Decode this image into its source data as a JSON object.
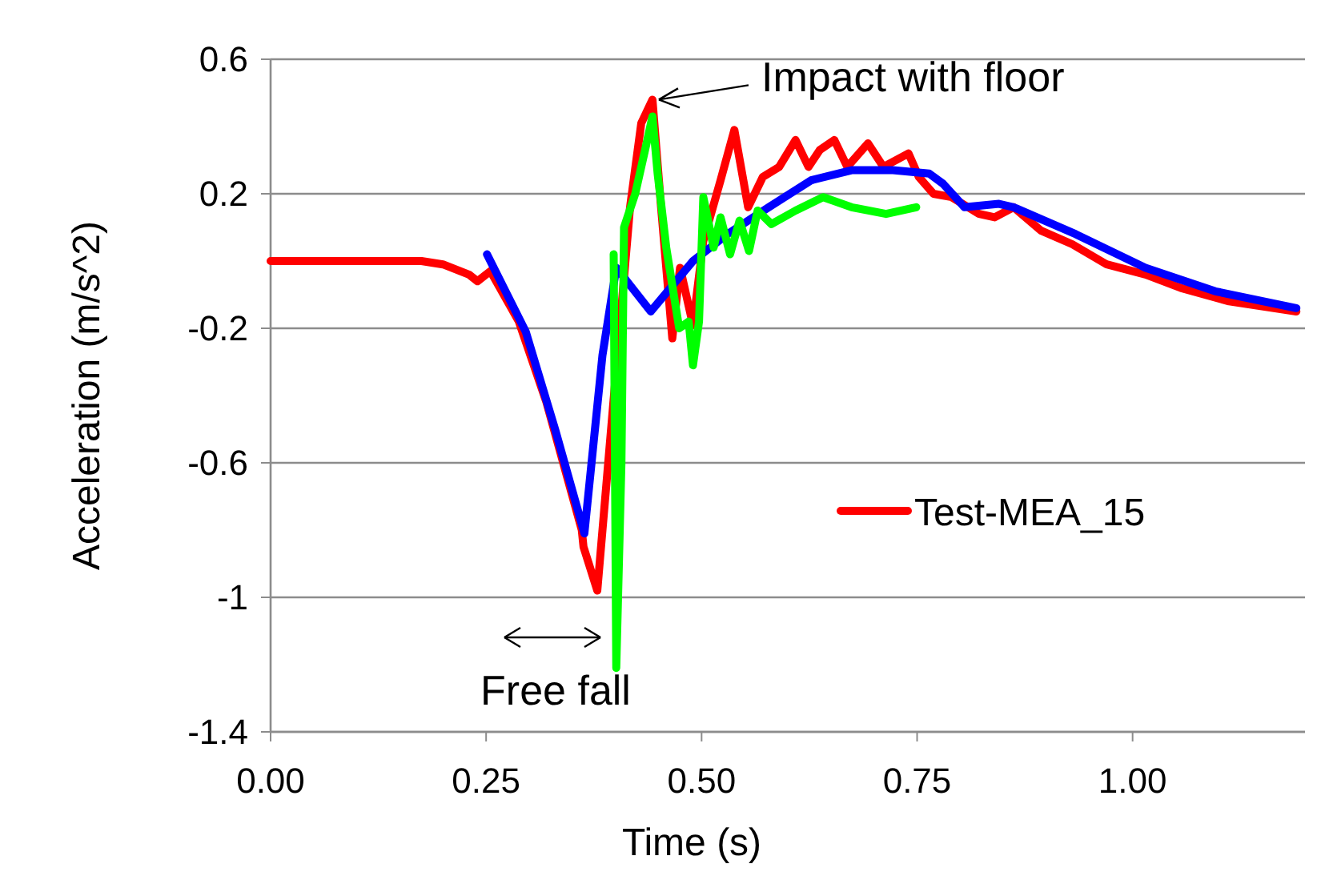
{
  "chart_data": {
    "type": "line",
    "xlabel": "Time (s)",
    "ylabel": "Acceleration (m/s^2)",
    "xlim": [
      0,
      1.2
    ],
    "xticks": [
      {
        "value": 0,
        "label": "0.00"
      },
      {
        "value": 0.25,
        "label": "0.25"
      },
      {
        "value": 0.5,
        "label": "0.50"
      },
      {
        "value": 0.75,
        "label": "0.75"
      },
      {
        "value": 1,
        "label": "1.00"
      }
    ],
    "ylim": [
      -1.4,
      0.6
    ],
    "yticks": [
      0.6,
      0.2,
      -0.2,
      -0.6,
      -1,
      -1.4
    ],
    "grid": "y",
    "legend": "right",
    "line_style": "solid",
    "marker": "none",
    "annotations": [
      {
        "text": "Impact with floor",
        "x": 0.443,
        "y": 0.48
      },
      "Free fall"
    ],
    "series": [
      {
        "name": "Test-MEA_15",
        "color": "#ff0000",
        "x": [
          0,
          0.05,
          0.1,
          0.15,
          0.175,
          0.2,
          0.23,
          0.24,
          0.255,
          0.288,
          0.32,
          0.361,
          0.363,
          0.379,
          0.392,
          0.417,
          0.43,
          0.443,
          0.453,
          0.466,
          0.475,
          0.49,
          0.502,
          0.522,
          0.538,
          0.554,
          0.571,
          0.59,
          0.609,
          0.624,
          0.637,
          0.654,
          0.669,
          0.693,
          0.711,
          0.74,
          0.752,
          0.769,
          0.79,
          0.822,
          0.84,
          0.862,
          0.894,
          0.93,
          0.97,
          1.015,
          1.056,
          1.112,
          1.19
        ],
        "values": [
          0,
          0,
          0,
          0,
          0,
          -0.01,
          -0.04,
          -0.06,
          -0.03,
          -0.18,
          -0.42,
          -0.8,
          -0.85,
          -0.98,
          -0.59,
          0.16,
          0.41,
          0.48,
          0.16,
          -0.23,
          -0.02,
          -0.19,
          0.06,
          0.24,
          0.39,
          0.16,
          0.25,
          0.28,
          0.36,
          0.28,
          0.33,
          0.36,
          0.28,
          0.35,
          0.28,
          0.32,
          0.25,
          0.2,
          0.19,
          0.14,
          0.13,
          0.16,
          0.09,
          0.05,
          -0.01,
          -0.04,
          -0.08,
          -0.12,
          -0.15
        ]
      },
      {
        "color": "#0000ff",
        "x": [
          0.251,
          0.296,
          0.33,
          0.364,
          0.385,
          0.401,
          0.441,
          0.49,
          0.53,
          0.578,
          0.627,
          0.674,
          0.722,
          0.764,
          0.78,
          0.805,
          0.845,
          0.862,
          0.934,
          1.015,
          1.096,
          1.19
        ],
        "values": [
          0.02,
          -0.21,
          -0.5,
          -0.81,
          -0.28,
          -0.02,
          -0.15,
          0,
          0.08,
          0.16,
          0.24,
          0.27,
          0.27,
          0.26,
          0.23,
          0.16,
          0.17,
          0.16,
          0.08,
          -0.02,
          -0.09,
          -0.14
        ]
      },
      {
        "color": "#00ff00",
        "x": [
          0.398,
          0.401,
          0.407,
          0.41,
          0.423,
          0.437,
          0.443,
          0.449,
          0.459,
          0.474,
          0.485,
          0.49,
          0.497,
          0.502,
          0.514,
          0.522,
          0.533,
          0.544,
          0.555,
          0.565,
          0.581,
          0.609,
          0.641,
          0.674,
          0.714,
          0.749
        ],
        "values": [
          0.02,
          -1.21,
          -0.6,
          0.1,
          0.2,
          0.36,
          0.43,
          0.26,
          0.04,
          -0.2,
          -0.18,
          -0.31,
          -0.18,
          0.19,
          0.04,
          0.13,
          0.02,
          0.12,
          0.03,
          0.15,
          0.11,
          0.15,
          0.19,
          0.16,
          0.14,
          0.16
        ]
      }
    ]
  }
}
